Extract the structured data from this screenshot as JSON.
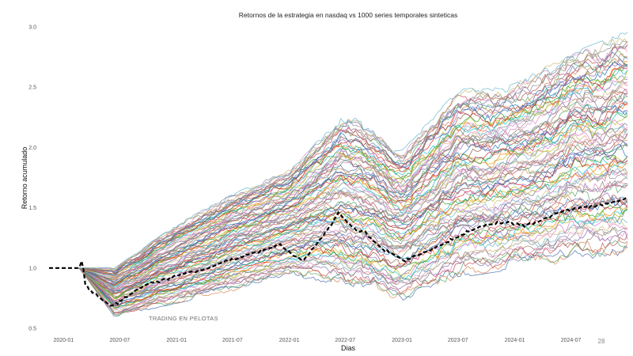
{
  "chart_data": {
    "type": "line",
    "title": "Retornos de la estrategia en nasdaq vs 1000 series temporales sinteticas",
    "xlabel": "Dias",
    "ylabel": "Retorno acumulado",
    "x_range": [
      "2019-11-15",
      "2024-12-31"
    ],
    "ylim": [
      0.5,
      3.0
    ],
    "y_ticks": [
      "0.5",
      "1.0",
      "1.5",
      "2.0",
      "2.5",
      "3.0"
    ],
    "x_ticks": [
      "2020-01",
      "2020-07",
      "2021-01",
      "2021-07",
      "2022-01",
      "2022-07",
      "2023-01",
      "2023-07",
      "2024-01",
      "2024-07"
    ],
    "x_tick_dates": [
      "2020-01-01",
      "2020-07-01",
      "2021-01-01",
      "2021-07-01",
      "2022-01-01",
      "2022-07-01",
      "2023-01-01",
      "2023-07-01",
      "2024-01-01",
      "2024-07-01"
    ],
    "grid": false,
    "legend": "none",
    "strategy_series": {
      "name": "",
      "color": "#000000",
      "style": "dashed",
      "points": [
        [
          "2019-11-15",
          1.0
        ],
        [
          "2020-01-01",
          1.0
        ],
        [
          "2020-02-20",
          1.0
        ],
        [
          "2020-03-01",
          1.08
        ],
        [
          "2020-03-10",
          0.87
        ],
        [
          "2020-03-25",
          0.82
        ],
        [
          "2020-04-15",
          0.78
        ],
        [
          "2020-05-15",
          0.72
        ],
        [
          "2020-06-01",
          0.69
        ],
        [
          "2020-06-20",
          0.7
        ],
        [
          "2020-07-15",
          0.75
        ],
        [
          "2020-08-15",
          0.8
        ],
        [
          "2020-09-15",
          0.85
        ],
        [
          "2020-10-15",
          0.88
        ],
        [
          "2020-11-15",
          0.9
        ],
        [
          "2020-12-15",
          0.92
        ],
        [
          "2021-01-15",
          0.95
        ],
        [
          "2021-03-01",
          0.97
        ],
        [
          "2021-04-15",
          1.0
        ],
        [
          "2021-06-01",
          1.05
        ],
        [
          "2021-07-15",
          1.08
        ],
        [
          "2021-09-01",
          1.12
        ],
        [
          "2021-10-15",
          1.15
        ],
        [
          "2021-12-01",
          1.2
        ],
        [
          "2022-01-15",
          1.1
        ],
        [
          "2022-02-15",
          1.06
        ],
        [
          "2022-03-15",
          1.15
        ],
        [
          "2022-04-15",
          1.25
        ],
        [
          "2022-05-15",
          1.35
        ],
        [
          "2022-06-10",
          1.46
        ],
        [
          "2022-07-01",
          1.4
        ],
        [
          "2022-08-01",
          1.32
        ],
        [
          "2022-09-01",
          1.3
        ],
        [
          "2022-10-01",
          1.22
        ],
        [
          "2022-11-01",
          1.15
        ],
        [
          "2022-12-01",
          1.12
        ],
        [
          "2023-01-10",
          1.06
        ],
        [
          "2023-02-15",
          1.1
        ],
        [
          "2023-04-01",
          1.15
        ],
        [
          "2023-06-01",
          1.22
        ],
        [
          "2023-08-01",
          1.3
        ],
        [
          "2023-10-01",
          1.36
        ],
        [
          "2023-12-01",
          1.38
        ],
        [
          "2024-02-01",
          1.35
        ],
        [
          "2024-04-01",
          1.4
        ],
        [
          "2024-06-01",
          1.47
        ],
        [
          "2024-08-01",
          1.5
        ],
        [
          "2024-10-01",
          1.52
        ],
        [
          "2024-12-31",
          1.58
        ]
      ]
    },
    "synthetic_series": {
      "name": "",
      "count": 1000,
      "drawn": 90,
      "start": "2020-02-20",
      "envelope_low": [
        [
          "2020-02-20",
          1.0
        ],
        [
          "2020-06-15",
          0.6
        ],
        [
          "2021-01-01",
          0.72
        ],
        [
          "2021-07-01",
          0.82
        ],
        [
          "2022-01-01",
          0.95
        ],
        [
          "2022-07-01",
          0.88
        ],
        [
          "2023-01-01",
          0.75
        ],
        [
          "2023-07-01",
          0.95
        ],
        [
          "2024-01-01",
          1.02
        ],
        [
          "2024-07-01",
          1.08
        ],
        [
          "2024-12-31",
          1.15
        ]
      ],
      "envelope_high": [
        [
          "2020-02-20",
          1.0
        ],
        [
          "2020-06-15",
          1.0
        ],
        [
          "2021-01-01",
          1.35
        ],
        [
          "2021-07-01",
          1.6
        ],
        [
          "2022-01-01",
          1.8
        ],
        [
          "2022-07-01",
          2.28
        ],
        [
          "2023-01-01",
          1.95
        ],
        [
          "2023-07-01",
          2.45
        ],
        [
          "2024-01-01",
          2.5
        ],
        [
          "2024-07-01",
          2.75
        ],
        [
          "2024-12-31",
          2.93
        ]
      ],
      "palette": [
        "#4c72b0",
        "#dd8452",
        "#55a868",
        "#c44e52",
        "#8172b3",
        "#937860",
        "#da8bc3",
        "#8c8c8c",
        "#ccb974",
        "#64b5cd",
        "#e377c2",
        "#7f7f7f",
        "#bcbd22",
        "#17becf",
        "#ff7f0e",
        "#2ca02c",
        "#d62728",
        "#9467bd",
        "#8c564b",
        "#1f77b4"
      ]
    },
    "annotations": [
      "TRADING EN PELOTAS",
      "28"
    ]
  }
}
